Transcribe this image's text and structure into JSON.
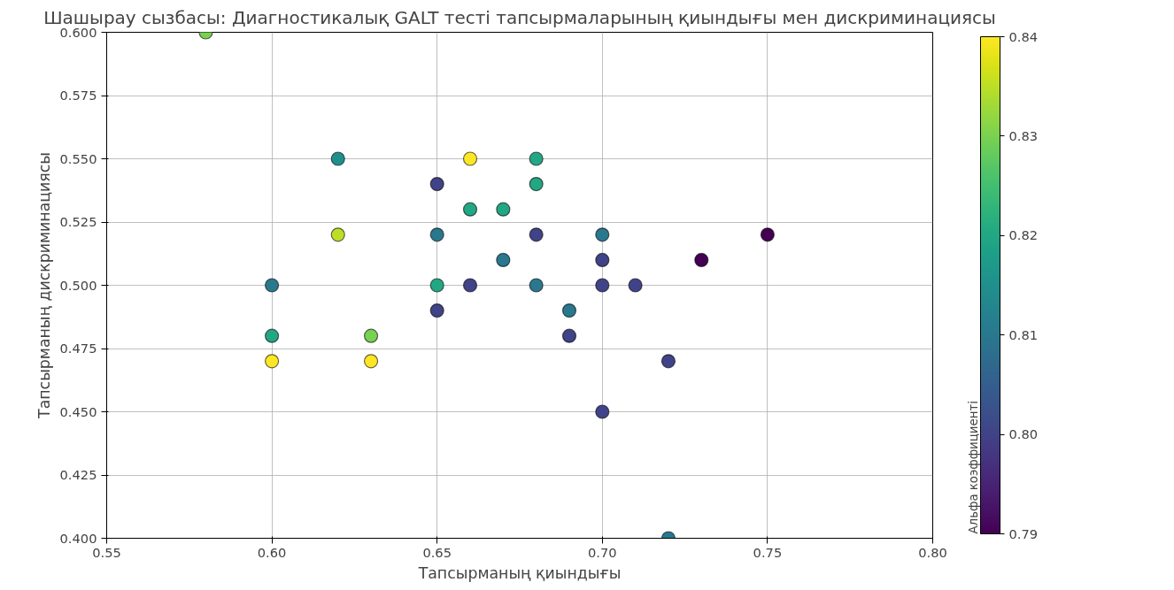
{
  "chart_data": {
    "type": "scatter",
    "title": "Шашырау сызбасы: Диагностикалық GALT тесті тапсырмаларының қиындығы мен дискриминациясы",
    "xlabel": "Тапсырманың қиындығы",
    "ylabel": "Тапсырманың дискриминациясы",
    "clabel": "Альфа коэффициенті",
    "x": [
      0.58,
      0.6,
      0.6,
      0.6,
      0.62,
      0.62,
      0.63,
      0.63,
      0.65,
      0.65,
      0.65,
      0.65,
      0.66,
      0.66,
      0.66,
      0.67,
      0.67,
      0.68,
      0.68,
      0.68,
      0.68,
      0.69,
      0.69,
      0.7,
      0.7,
      0.7,
      0.7,
      0.71,
      0.72,
      0.72,
      0.73,
      0.75
    ],
    "values": [
      0.6,
      0.5,
      0.48,
      0.47,
      0.55,
      0.52,
      0.48,
      0.47,
      0.54,
      0.52,
      0.5,
      0.49,
      0.55,
      0.53,
      0.5,
      0.53,
      0.51,
      0.55,
      0.54,
      0.52,
      0.5,
      0.49,
      0.48,
      0.52,
      0.51,
      0.5,
      0.45,
      0.5,
      0.47,
      0.4,
      0.51,
      0.52
    ],
    "cvalues": [
      0.83,
      0.81,
      0.82,
      0.84,
      0.815,
      0.835,
      0.83,
      0.84,
      0.8,
      0.81,
      0.82,
      0.8,
      0.84,
      0.82,
      0.8,
      0.82,
      0.81,
      0.82,
      0.82,
      0.8,
      0.81,
      0.81,
      0.8,
      0.81,
      0.8,
      0.8,
      0.8,
      0.8,
      0.8,
      0.81,
      0.79,
      0.79
    ],
    "xlim": [
      0.55,
      0.8
    ],
    "xticks": [
      {
        "value": 0.55,
        "label": "0.55"
      },
      {
        "value": 0.6,
        "label": "0.60"
      },
      {
        "value": 0.65,
        "label": "0.65"
      },
      {
        "value": 0.7,
        "label": "0.70"
      },
      {
        "value": 0.75,
        "label": "0.75"
      },
      {
        "value": 0.8,
        "label": "0.80"
      }
    ],
    "ylim": [
      0.4,
      0.6
    ],
    "yticks": [
      {
        "value": 0.4,
        "label": "0.400"
      },
      {
        "value": 0.425,
        "label": "0.425"
      },
      {
        "value": 0.45,
        "label": "0.450"
      },
      {
        "value": 0.475,
        "label": "0.475"
      },
      {
        "value": 0.5,
        "label": "0.500"
      },
      {
        "value": 0.525,
        "label": "0.525"
      },
      {
        "value": 0.55,
        "label": "0.550"
      },
      {
        "value": 0.575,
        "label": "0.575"
      },
      {
        "value": 0.6,
        "label": "0.600"
      }
    ],
    "clim": [
      0.79,
      0.84
    ],
    "cticks": [
      {
        "value": 0.79,
        "label": "0.79"
      },
      {
        "value": 0.8,
        "label": "0.80"
      },
      {
        "value": 0.81,
        "label": "0.81"
      },
      {
        "value": 0.82,
        "label": "0.82"
      },
      {
        "value": 0.83,
        "label": "0.83"
      },
      {
        "value": 0.84,
        "label": "0.84"
      }
    ],
    "grid": true,
    "marker": "circle"
  }
}
